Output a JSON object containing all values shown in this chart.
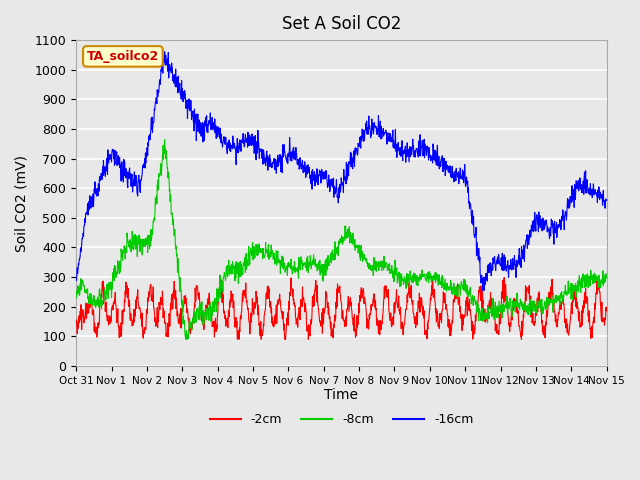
{
  "title": "Set A Soil CO2",
  "ylabel": "Soil CO2 (mV)",
  "xlabel": "Time",
  "ylim": [
    0,
    1100
  ],
  "yticks": [
    0,
    100,
    200,
    300,
    400,
    500,
    600,
    700,
    800,
    900,
    1000,
    1100
  ],
  "bg_color": "#e8e8e8",
  "line_colors": {
    "2cm": "#ff0000",
    "8cm": "#00cc00",
    "16cm": "#0000ff"
  },
  "legend_label": "TA_soilco2",
  "legend_bg": "#ffffcc",
  "legend_border": "#cc8800",
  "xtick_labels": [
    "Oct 31",
    "Nov 1",
    "Nov 2",
    "Nov 3",
    "Nov 4",
    "Nov 5",
    "Nov 6",
    "Nov 7",
    "Nov 8",
    "Nov 9",
    "Nov 10",
    "Nov 11",
    "Nov 12",
    "Nov 13",
    "Nov 14",
    "Nov 15"
  ],
  "num_points": 1440
}
